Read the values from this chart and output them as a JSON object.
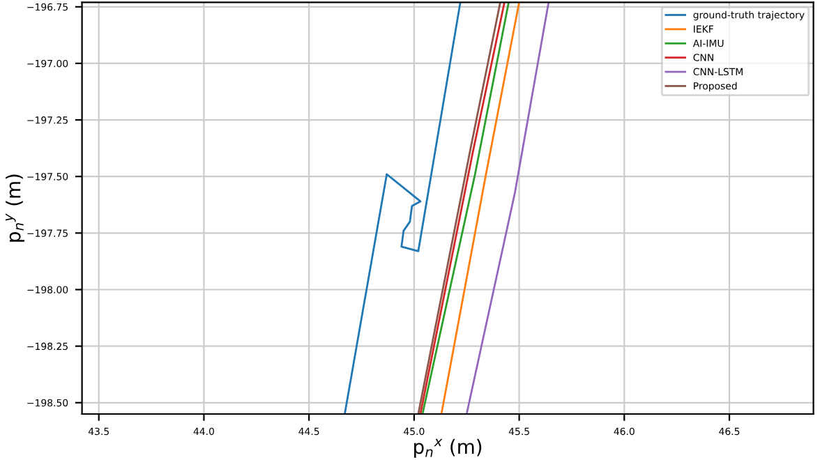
{
  "chart_data": {
    "type": "line",
    "xlabel": "p$_{n}$$^{x}$ (m)",
    "ylabel": "p$_{n}$$^{y}$ (m)",
    "xlim": [
      43.42,
      46.9
    ],
    "ylim": [
      -198.55,
      -196.73
    ],
    "xticks": [
      {
        "value": 43.5,
        "label": "43.5"
      },
      {
        "value": 44.0,
        "label": "44.0"
      },
      {
        "value": 44.5,
        "label": "44.5"
      },
      {
        "value": 45.0,
        "label": "45.0"
      },
      {
        "value": 45.5,
        "label": "45.5"
      },
      {
        "value": 46.0,
        "label": "46.0"
      },
      {
        "value": 46.5,
        "label": "46.5"
      }
    ],
    "yticks": [
      {
        "value": -196.75,
        "label": "−196.75"
      },
      {
        "value": -197.0,
        "label": "−197.00"
      },
      {
        "value": -197.25,
        "label": "−197.25"
      },
      {
        "value": -197.5,
        "label": "−197.50"
      },
      {
        "value": -197.75,
        "label": "−197.75"
      },
      {
        "value": -198.0,
        "label": "−198.00"
      },
      {
        "value": -198.25,
        "label": "−198.25"
      },
      {
        "value": -198.5,
        "label": "−198.50"
      }
    ],
    "grid": true,
    "legend": "top right",
    "series": [
      {
        "name": "ground-truth trajectory",
        "color": "#1f77b4",
        "x": [
          44.67,
          44.87,
          45.03,
          44.99,
          44.98,
          44.95,
          44.94,
          45.02,
          45.22
        ],
        "values": [
          -198.55,
          -197.49,
          -197.61,
          -197.63,
          -197.7,
          -197.74,
          -197.81,
          -197.83,
          -196.73
        ]
      },
      {
        "name": "IEKF",
        "color": "#ff7f0e",
        "x": [
          45.13,
          45.34,
          45.5
        ],
        "values": [
          -198.55,
          -197.5,
          -196.73
        ]
      },
      {
        "name": "AI-IMU",
        "color": "#2ca02c",
        "x": [
          45.04,
          45.29,
          45.45
        ],
        "values": [
          -198.55,
          -197.49,
          -196.73
        ]
      },
      {
        "name": "CNN",
        "color": "#d62728",
        "x": [
          45.03,
          45.28,
          45.43
        ],
        "values": [
          -198.55,
          -197.39,
          -196.73
        ]
      },
      {
        "name": "CNN-LSTM",
        "color": "#9467bd",
        "x": [
          45.25,
          45.48,
          45.64
        ],
        "values": [
          -198.55,
          -197.57,
          -196.73
        ]
      },
      {
        "name": "Proposed",
        "color": "#8c564b",
        "x": [
          45.02,
          45.27,
          45.41
        ],
        "values": [
          -198.55,
          -197.37,
          -196.73
        ]
      }
    ]
  }
}
